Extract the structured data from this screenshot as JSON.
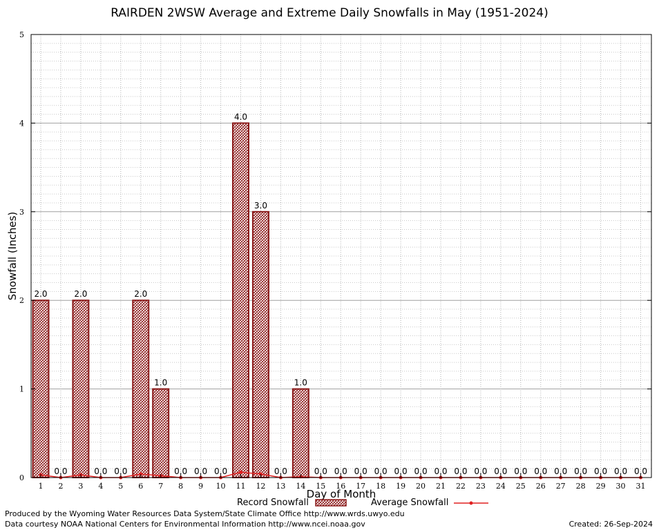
{
  "chart_data": {
    "type": "bar",
    "title": "RAIRDEN 2WSW Average and Extreme Daily Snowfalls in May (1951-2024)",
    "xlabel": "Day of Month",
    "ylabel": "Snowfall (Inches)",
    "ylim": [
      0,
      5
    ],
    "yticks": [
      "0",
      "1",
      "2",
      "3",
      "4",
      "5"
    ],
    "categories": [
      "1",
      "2",
      "3",
      "4",
      "5",
      "6",
      "7",
      "8",
      "9",
      "10",
      "11",
      "12",
      "13",
      "14",
      "15",
      "16",
      "17",
      "18",
      "19",
      "20",
      "21",
      "22",
      "23",
      "24",
      "25",
      "26",
      "27",
      "28",
      "29",
      "30",
      "31"
    ],
    "series": [
      {
        "name": "Record Snowfall",
        "type": "bar",
        "color": "#8b1a1a",
        "values": [
          2.0,
          0.0,
          2.0,
          0.0,
          0.0,
          2.0,
          1.0,
          0.0,
          0.0,
          0.0,
          4.0,
          3.0,
          0.0,
          1.0,
          0.0,
          0.0,
          0.0,
          0.0,
          0.0,
          0.0,
          0.0,
          0.0,
          0.0,
          0.0,
          0.0,
          0.0,
          0.0,
          0.0,
          0.0,
          0.0,
          0.0
        ],
        "labels": [
          "2.0",
          "0.0",
          "2.0",
          "0.0",
          "0.0",
          "2.0",
          "1.0",
          "0.0",
          "0.0",
          "0.0",
          "4.0",
          "3.0",
          "0.0",
          "1.0",
          "0.0",
          "0.0",
          "0.0",
          "0.0",
          "0.0",
          "0.0",
          "0.0",
          "0.0",
          "0.0",
          "0.0",
          "0.0",
          "0.0",
          "0.0",
          "0.0",
          "0.0",
          "0.0",
          "0.0"
        ]
      },
      {
        "name": "Average Snowfall",
        "type": "line",
        "color": "#e02020",
        "values": [
          0.03,
          0.0,
          0.03,
          0.0,
          0.0,
          0.04,
          0.02,
          0.0,
          0.0,
          0.0,
          0.06,
          0.04,
          0.0,
          0.01,
          0.0,
          0.0,
          0.0,
          0.0,
          0.0,
          0.0,
          0.0,
          0.0,
          0.0,
          0.0,
          0.0,
          0.0,
          0.0,
          0.0,
          0.0,
          0.0,
          0.0
        ]
      }
    ],
    "grid": true,
    "legend": "bottom"
  },
  "footer": {
    "produced_by": "Produced by the Wyoming Water Resources Data System/State Climate Office http://www.wrds.uwyo.edu",
    "data_courtesy": "Data courtesy NOAA National Centers for Environmental Information http://www.ncei.noaa.gov",
    "created": "Created:  26-Sep-2024"
  }
}
